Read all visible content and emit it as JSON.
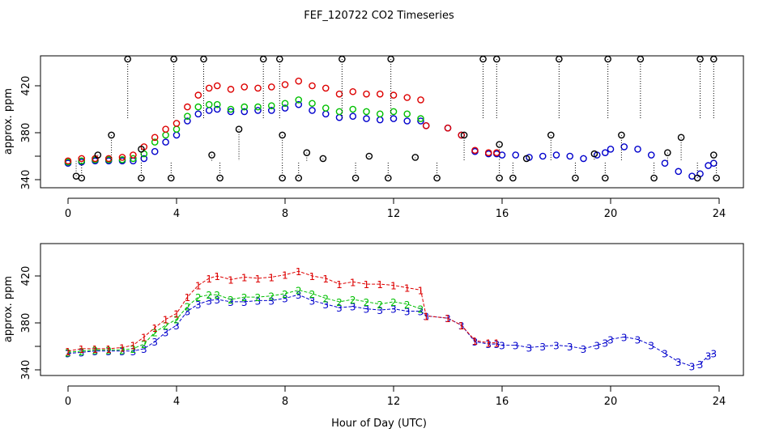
{
  "title": "FEF_120722  CO2 Timeseries",
  "xlabel": "Hour of Day (UTC)",
  "colors": {
    "s1": "#dd0000",
    "s2": "#00c000",
    "s3": "#0000cc",
    "cyan": "#00cccc",
    "outlier": "#000000"
  },
  "chart_data": [
    {
      "type": "scatter",
      "panel": "top",
      "ylabel": "approx. ppm",
      "xlim": [
        0,
        24
      ],
      "ylim": [
        340,
        440
      ],
      "xticks": [
        "0",
        "4",
        "8",
        "12",
        "16",
        "20",
        "24"
      ],
      "yticks": [
        "340",
        "380",
        "420"
      ],
      "yticks_extra": [
        "360"
      ],
      "outliers_top": [
        2.2,
        3.9,
        5.0,
        7.2,
        7.8,
        10.1,
        11.9,
        15.3,
        15.8,
        18.1,
        19.9,
        21.1,
        23.3,
        23.8
      ],
      "outliers_mid": [
        [
          0.3,
          343
        ],
        [
          1.1,
          361
        ],
        [
          1.6,
          378
        ],
        [
          2.7,
          366
        ],
        [
          5.3,
          361
        ],
        [
          6.3,
          383
        ],
        [
          7.9,
          378
        ],
        [
          8.8,
          363
        ],
        [
          9.4,
          358
        ],
        [
          11.1,
          360
        ],
        [
          12.8,
          359
        ],
        [
          14.6,
          378
        ],
        [
          15.9,
          370
        ],
        [
          16.9,
          358
        ],
        [
          17.8,
          378
        ],
        [
          19.4,
          362
        ],
        [
          20.4,
          378
        ],
        [
          22.1,
          363
        ],
        [
          22.6,
          376
        ],
        [
          23.8,
          361
        ]
      ],
      "outliers_low": [
        0.5,
        2.7,
        3.8,
        5.6,
        7.9,
        8.5,
        10.6,
        11.8,
        13.6,
        15.9,
        16.4,
        18.7,
        19.8,
        21.6,
        23.2,
        23.9
      ]
    },
    {
      "type": "line",
      "panel": "bottom",
      "ylabel": "approx. ppm",
      "xlim": [
        0,
        24
      ],
      "ylim": [
        340,
        440
      ],
      "xticks": [
        "0",
        "4",
        "8",
        "12",
        "16",
        "20",
        "24"
      ],
      "yticks": [
        "340",
        "380",
        "420"
      ],
      "yticks_extra": [
        "360"
      ],
      "series": [
        {
          "marker": "1",
          "values": [
            [
              0,
              356
            ],
            [
              0.5,
              358
            ],
            [
              1,
              358
            ],
            [
              1.5,
              358
            ],
            [
              2,
              359
            ],
            [
              2.4,
              361
            ],
            [
              2.8,
              368
            ],
            [
              3.2,
              376
            ],
            [
              3.6,
              383
            ],
            [
              4,
              388
            ],
            [
              4.4,
              402
            ],
            [
              4.8,
              412
            ],
            [
              5.2,
              418
            ],
            [
              5.5,
              420
            ],
            [
              6,
              417
            ],
            [
              6.5,
              419
            ],
            [
              7,
              418
            ],
            [
              7.5,
              419
            ],
            [
              8,
              421
            ],
            [
              8.5,
              424
            ],
            [
              9,
              420
            ],
            [
              9.5,
              418
            ],
            [
              10,
              413
            ],
            [
              10.5,
              415
            ],
            [
              11,
              413
            ],
            [
              11.5,
              413
            ],
            [
              12,
              412
            ],
            [
              12.5,
              410
            ],
            [
              13,
              408
            ],
            [
              13.2,
              386
            ],
            [
              14,
              384
            ],
            [
              14.5,
              378
            ],
            [
              15,
              365
            ],
            [
              15.5,
              363
            ],
            [
              15.8,
              363
            ]
          ]
        },
        {
          "marker": "2",
          "values": [
            [
              0,
              355
            ],
            [
              0.5,
              356
            ],
            [
              1,
              357
            ],
            [
              1.5,
              357
            ],
            [
              2,
              357
            ],
            [
              2.4,
              358
            ],
            [
              2.8,
              362
            ],
            [
              3.2,
              372
            ],
            [
              3.6,
              378
            ],
            [
              4,
              383
            ],
            [
              4.4,
              394
            ],
            [
              4.8,
              402
            ],
            [
              5.2,
              404
            ],
            [
              5.5,
              404
            ],
            [
              6,
              400
            ],
            [
              6.5,
              402
            ],
            [
              7,
              402
            ],
            [
              7.5,
              403
            ],
            [
              8,
              405
            ],
            [
              8.5,
              408
            ],
            [
              9,
              405
            ],
            [
              9.5,
              401
            ],
            [
              10,
              398
            ],
            [
              10.5,
              400
            ],
            [
              11,
              398
            ],
            [
              11.5,
              396
            ],
            [
              12,
              398
            ],
            [
              12.5,
              396
            ],
            [
              13,
              392
            ]
          ]
        },
        {
          "marker": "3",
          "values": [
            [
              0,
              354
            ],
            [
              0.5,
              355
            ],
            [
              1,
              356
            ],
            [
              1.5,
              356
            ],
            [
              2,
              356
            ],
            [
              2.4,
              356
            ],
            [
              2.8,
              358
            ],
            [
              3.2,
              364
            ],
            [
              3.6,
              372
            ],
            [
              4,
              378
            ],
            [
              4.4,
              390
            ],
            [
              4.8,
              396
            ],
            [
              5.2,
              399
            ],
            [
              5.5,
              400
            ],
            [
              6,
              398
            ],
            [
              6.5,
              398
            ],
            [
              7,
              399
            ],
            [
              7.5,
              399
            ],
            [
              8,
              401
            ],
            [
              8.5,
              404
            ],
            [
              9,
              399
            ],
            [
              9.5,
              396
            ],
            [
              10,
              393
            ],
            [
              10.5,
              394
            ],
            [
              11,
              392
            ],
            [
              11.5,
              391
            ],
            [
              12,
              392
            ],
            [
              12.5,
              390
            ],
            [
              13,
              390
            ],
            [
              13.2,
              386
            ],
            [
              14,
              384
            ],
            [
              14.5,
              378
            ],
            [
              15,
              364
            ],
            [
              15.5,
              362
            ],
            [
              15.8,
              362
            ],
            [
              16,
              361
            ],
            [
              16.5,
              361
            ],
            [
              17,
              359
            ],
            [
              17.5,
              360
            ],
            [
              18,
              361
            ],
            [
              18.5,
              360
            ],
            [
              19,
              358
            ],
            [
              19.5,
              361
            ],
            [
              19.8,
              363
            ],
            [
              20,
              366
            ],
            [
              20.5,
              368
            ],
            [
              21,
              366
            ],
            [
              21.5,
              361
            ],
            [
              22,
              354
            ],
            [
              22.5,
              347
            ],
            [
              23,
              343
            ],
            [
              23.3,
              345
            ],
            [
              23.6,
              352
            ],
            [
              23.8,
              354
            ]
          ]
        }
      ]
    }
  ]
}
